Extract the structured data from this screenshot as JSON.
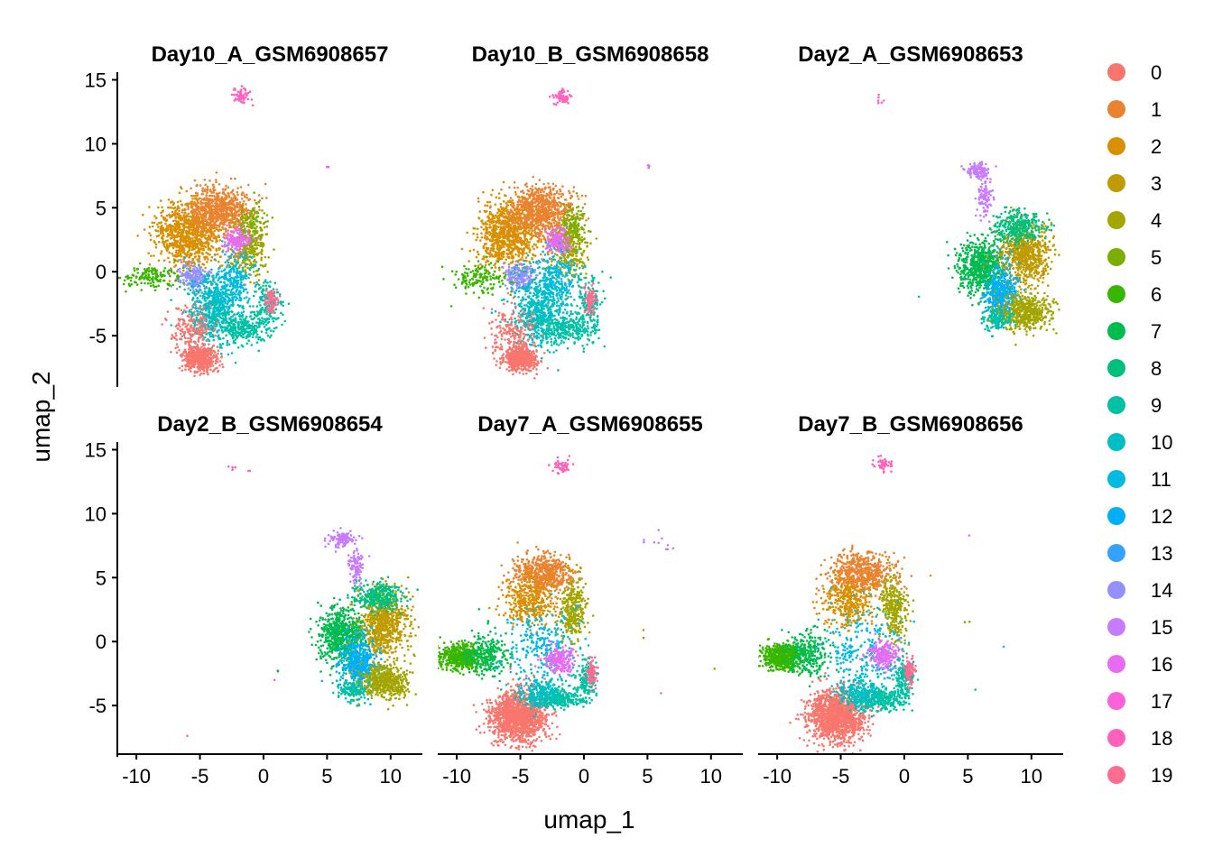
{
  "chart_data": {
    "type": "scatter",
    "xlabel": "umap_1",
    "ylabel": "umap_2",
    "xlim": [
      -11.5,
      12.5
    ],
    "ylim": [
      -8.8,
      15.6
    ],
    "x_ticks": [
      -10,
      -5,
      0,
      5,
      10
    ],
    "x_tick_labels": [
      "-10",
      "-5",
      "0",
      "5",
      "10"
    ],
    "y_ticks": [
      -5,
      0,
      5,
      10,
      15
    ],
    "y_tick_labels": [
      "-5",
      "0",
      "5",
      "10",
      "15"
    ],
    "legend_position": "right",
    "legend": [
      {
        "label": "0",
        "color": "#F8766D"
      },
      {
        "label": "1",
        "color": "#EA8331"
      },
      {
        "label": "2",
        "color": "#D89000"
      },
      {
        "label": "3",
        "color": "#C09B00"
      },
      {
        "label": "4",
        "color": "#A3A500"
      },
      {
        "label": "5",
        "color": "#7CAE00"
      },
      {
        "label": "6",
        "color": "#39B600"
      },
      {
        "label": "7",
        "color": "#00BB4E"
      },
      {
        "label": "8",
        "color": "#00BF7D"
      },
      {
        "label": "9",
        "color": "#00C1A3"
      },
      {
        "label": "10",
        "color": "#00BFC4"
      },
      {
        "label": "11",
        "color": "#00BAE0"
      },
      {
        "label": "12",
        "color": "#00B0F6"
      },
      {
        "label": "13",
        "color": "#35A2FF"
      },
      {
        "label": "14",
        "color": "#9590FF"
      },
      {
        "label": "15",
        "color": "#C77CFF"
      },
      {
        "label": "16",
        "color": "#E76BF3"
      },
      {
        "label": "17",
        "color": "#FA62DB"
      },
      {
        "label": "18",
        "color": "#FF62BC"
      },
      {
        "label": "19",
        "color": "#FF6C91"
      }
    ],
    "panels": [
      {
        "title": "Day10_A_GSM6908657",
        "clusters": [
          {
            "cluster": 18,
            "x": -1.7,
            "y": 13.7,
            "sx": 0.35,
            "sy": 0.3,
            "n": 60
          },
          {
            "cluster": 16,
            "x": 5.1,
            "y": 8.2,
            "sx": 0.05,
            "sy": 0.05,
            "n": 3
          },
          {
            "cluster": 2,
            "x": -5.9,
            "y": 3.0,
            "sx": 1.3,
            "sy": 1.3,
            "n": 900
          },
          {
            "cluster": 1,
            "x": -3.4,
            "y": 4.8,
            "sx": 1.2,
            "sy": 0.9,
            "n": 700
          },
          {
            "cluster": 4,
            "x": -1.2,
            "y": 1.8,
            "sx": 0.7,
            "sy": 1.1,
            "n": 300
          },
          {
            "cluster": 5,
            "x": -0.8,
            "y": 3.8,
            "sx": 0.5,
            "sy": 0.8,
            "n": 120
          },
          {
            "cluster": 16,
            "x": -2.1,
            "y": 2.4,
            "sx": 0.5,
            "sy": 0.5,
            "n": 150
          },
          {
            "cluster": 14,
            "x": -5.5,
            "y": -0.4,
            "sx": 0.6,
            "sy": 0.5,
            "n": 200
          },
          {
            "cluster": 6,
            "x": -8.8,
            "y": -0.4,
            "sx": 1.1,
            "sy": 0.5,
            "n": 150
          },
          {
            "cluster": 10,
            "x": -3.9,
            "y": -3.0,
            "sx": 1.0,
            "sy": 1.4,
            "n": 650
          },
          {
            "cluster": 9,
            "x": -1.6,
            "y": -4.4,
            "sx": 1.0,
            "sy": 0.6,
            "n": 250
          },
          {
            "cluster": 9,
            "x": 0.3,
            "y": -2.6,
            "sx": 0.5,
            "sy": 1.0,
            "n": 150
          },
          {
            "cluster": 0,
            "x": -5.0,
            "y": -6.8,
            "sx": 0.7,
            "sy": 0.5,
            "n": 500
          },
          {
            "cluster": 0,
            "x": -5.6,
            "y": -4.6,
            "sx": 0.9,
            "sy": 0.9,
            "n": 180
          },
          {
            "cluster": 19,
            "x": 0.6,
            "y": -2.2,
            "sx": 0.25,
            "sy": 0.5,
            "n": 80
          },
          {
            "cluster": 11,
            "x": -2.3,
            "y": -0.6,
            "sx": 0.8,
            "sy": 1.0,
            "n": 200
          }
        ]
      },
      {
        "title": "Day10_B_GSM6908658",
        "clusters": [
          {
            "cluster": 18,
            "x": -1.7,
            "y": 13.7,
            "sx": 0.35,
            "sy": 0.3,
            "n": 60
          },
          {
            "cluster": 16,
            "x": 5.1,
            "y": 8.2,
            "sx": 0.05,
            "sy": 0.05,
            "n": 4
          },
          {
            "cluster": 2,
            "x": -5.9,
            "y": 3.0,
            "sx": 1.3,
            "sy": 1.3,
            "n": 900
          },
          {
            "cluster": 1,
            "x": -3.4,
            "y": 4.8,
            "sx": 1.2,
            "sy": 0.9,
            "n": 700
          },
          {
            "cluster": 4,
            "x": -1.2,
            "y": 1.8,
            "sx": 0.7,
            "sy": 1.1,
            "n": 300
          },
          {
            "cluster": 5,
            "x": -0.8,
            "y": 3.8,
            "sx": 0.5,
            "sy": 0.8,
            "n": 120
          },
          {
            "cluster": 16,
            "x": -2.1,
            "y": 2.4,
            "sx": 0.5,
            "sy": 0.5,
            "n": 150
          },
          {
            "cluster": 14,
            "x": -5.1,
            "y": -0.4,
            "sx": 0.6,
            "sy": 0.5,
            "n": 200
          },
          {
            "cluster": 6,
            "x": -8.3,
            "y": -0.6,
            "sx": 1.2,
            "sy": 0.6,
            "n": 150
          },
          {
            "cluster": 10,
            "x": -3.5,
            "y": -3.0,
            "sx": 1.0,
            "sy": 1.4,
            "n": 650
          },
          {
            "cluster": 9,
            "x": -1.2,
            "y": -4.4,
            "sx": 1.0,
            "sy": 0.6,
            "n": 250
          },
          {
            "cluster": 9,
            "x": 0.5,
            "y": -2.6,
            "sx": 0.5,
            "sy": 1.0,
            "n": 150
          },
          {
            "cluster": 0,
            "x": -5.0,
            "y": -6.8,
            "sx": 0.7,
            "sy": 0.5,
            "n": 500
          },
          {
            "cluster": 0,
            "x": -5.6,
            "y": -4.6,
            "sx": 0.9,
            "sy": 0.9,
            "n": 180
          },
          {
            "cluster": 19,
            "x": 0.5,
            "y": -2.2,
            "sx": 0.25,
            "sy": 0.5,
            "n": 80
          },
          {
            "cluster": 11,
            "x": -2.1,
            "y": -0.6,
            "sx": 0.8,
            "sy": 1.0,
            "n": 200
          }
        ]
      },
      {
        "title": "Day2_A_GSM6908653",
        "clusters": [
          {
            "cluster": 18,
            "x": -1.8,
            "y": 13.6,
            "sx": 0.3,
            "sy": 0.2,
            "n": 6
          },
          {
            "cluster": 15,
            "x": 5.8,
            "y": 7.9,
            "sx": 0.4,
            "sy": 0.3,
            "n": 120
          },
          {
            "cluster": 15,
            "x": 6.3,
            "y": 5.8,
            "sx": 0.3,
            "sy": 0.7,
            "n": 90
          },
          {
            "cluster": 7,
            "x": 6.1,
            "y": 0.4,
            "sx": 0.9,
            "sy": 1.0,
            "n": 700
          },
          {
            "cluster": 3,
            "x": 9.5,
            "y": 1.5,
            "sx": 0.9,
            "sy": 1.2,
            "n": 700
          },
          {
            "cluster": 8,
            "x": 9.0,
            "y": 3.5,
            "sx": 1.0,
            "sy": 0.6,
            "n": 300
          },
          {
            "cluster": 12,
            "x": 7.6,
            "y": -1.8,
            "sx": 0.6,
            "sy": 1.1,
            "n": 500
          },
          {
            "cluster": 4,
            "x": 9.5,
            "y": -3.1,
            "sx": 1.0,
            "sy": 0.7,
            "n": 500
          },
          {
            "cluster": 9,
            "x": 7.3,
            "y": -3.7,
            "sx": 0.6,
            "sy": 0.4,
            "n": 120
          },
          {
            "cluster": 9,
            "x": 1.2,
            "y": -2.0,
            "sx": 0.05,
            "sy": 0.05,
            "n": 1
          }
        ]
      },
      {
        "title": "Day2_B_GSM6908654",
        "clusters": [
          {
            "cluster": 18,
            "x": -2.3,
            "y": 13.6,
            "sx": 0.3,
            "sy": 0.2,
            "n": 4
          },
          {
            "cluster": 18,
            "x": -1.2,
            "y": 13.3,
            "sx": 0.1,
            "sy": 0.1,
            "n": 2
          },
          {
            "cluster": 15,
            "x": 6.1,
            "y": 8.0,
            "sx": 0.5,
            "sy": 0.3,
            "n": 120
          },
          {
            "cluster": 15,
            "x": 7.3,
            "y": 5.8,
            "sx": 0.3,
            "sy": 0.7,
            "n": 90
          },
          {
            "cluster": 7,
            "x": 6.2,
            "y": 0.5,
            "sx": 0.9,
            "sy": 1.0,
            "n": 700
          },
          {
            "cluster": 3,
            "x": 9.5,
            "y": 1.4,
            "sx": 0.9,
            "sy": 1.2,
            "n": 700
          },
          {
            "cluster": 8,
            "x": 9.0,
            "y": 3.5,
            "sx": 1.0,
            "sy": 0.6,
            "n": 300
          },
          {
            "cluster": 12,
            "x": 7.5,
            "y": -1.8,
            "sx": 0.7,
            "sy": 1.1,
            "n": 500
          },
          {
            "cluster": 4,
            "x": 9.6,
            "y": -3.1,
            "sx": 1.0,
            "sy": 0.7,
            "n": 500
          },
          {
            "cluster": 9,
            "x": 7.0,
            "y": -3.8,
            "sx": 0.6,
            "sy": 0.4,
            "n": 120
          },
          {
            "cluster": 0,
            "x": -6.0,
            "y": -7.4,
            "sx": 0.05,
            "sy": 0.05,
            "n": 1
          },
          {
            "cluster": 7,
            "x": 1.2,
            "y": -2.2,
            "sx": 0.1,
            "sy": 0.1,
            "n": 2
          },
          {
            "cluster": 19,
            "x": 0.8,
            "y": -3.0,
            "sx": 0.05,
            "sy": 0.05,
            "n": 1
          }
        ]
      },
      {
        "title": "Day7_A_GSM6908655",
        "clusters": [
          {
            "cluster": 18,
            "x": -1.7,
            "y": 13.7,
            "sx": 0.35,
            "sy": 0.3,
            "n": 50
          },
          {
            "cluster": 15,
            "x": 6.0,
            "y": 7.8,
            "sx": 0.8,
            "sy": 0.5,
            "n": 10
          },
          {
            "cluster": 1,
            "x": -3.2,
            "y": 5.3,
            "sx": 1.3,
            "sy": 0.8,
            "n": 600
          },
          {
            "cluster": 2,
            "x": -4.3,
            "y": 3.0,
            "sx": 1.0,
            "sy": 0.9,
            "n": 350
          },
          {
            "cluster": 4,
            "x": -0.8,
            "y": 2.5,
            "sx": 0.5,
            "sy": 1.2,
            "n": 300
          },
          {
            "cluster": 6,
            "x": -9.6,
            "y": -1.2,
            "sx": 0.8,
            "sy": 0.5,
            "n": 550
          },
          {
            "cluster": 7,
            "x": -7.6,
            "y": -1.0,
            "sx": 0.8,
            "sy": 0.8,
            "n": 250
          },
          {
            "cluster": 11,
            "x": -3.3,
            "y": -0.5,
            "sx": 1.5,
            "sy": 1.5,
            "n": 260
          },
          {
            "cluster": 16,
            "x": -1.9,
            "y": -1.5,
            "sx": 0.6,
            "sy": 0.5,
            "n": 200
          },
          {
            "cluster": 0,
            "x": -5.2,
            "y": -5.8,
            "sx": 1.1,
            "sy": 1.0,
            "n": 1300
          },
          {
            "cluster": 9,
            "x": -2.0,
            "y": -4.4,
            "sx": 1.1,
            "sy": 0.4,
            "n": 300
          },
          {
            "cluster": 9,
            "x": 0.2,
            "y": -2.9,
            "sx": 0.4,
            "sy": 0.8,
            "n": 150
          },
          {
            "cluster": 19,
            "x": 0.6,
            "y": -2.4,
            "sx": 0.2,
            "sy": 0.5,
            "n": 80
          },
          {
            "cluster": 10,
            "x": -3.5,
            "y": -4.0,
            "sx": 0.8,
            "sy": 0.6,
            "n": 200
          },
          {
            "cluster": 5,
            "x": 5.0,
            "y": 0.6,
            "sx": 0.3,
            "sy": 0.2,
            "n": 2
          },
          {
            "cluster": 4,
            "x": 10.2,
            "y": -2.2,
            "sx": 0.05,
            "sy": 0.05,
            "n": 1
          },
          {
            "cluster": 0,
            "x": 6.1,
            "y": -4.0,
            "sx": 0.05,
            "sy": 0.05,
            "n": 1
          }
        ]
      },
      {
        "title": "Day7_B_GSM6908656",
        "clusters": [
          {
            "cluster": 18,
            "x": -1.7,
            "y": 13.8,
            "sx": 0.35,
            "sy": 0.3,
            "n": 50
          },
          {
            "cluster": 16,
            "x": 5.1,
            "y": 8.3,
            "sx": 0.05,
            "sy": 0.05,
            "n": 1
          },
          {
            "cluster": 1,
            "x": -3.3,
            "y": 5.3,
            "sx": 1.3,
            "sy": 0.8,
            "n": 600
          },
          {
            "cluster": 2,
            "x": -4.5,
            "y": 3.0,
            "sx": 1.0,
            "sy": 0.9,
            "n": 350
          },
          {
            "cluster": 4,
            "x": -0.8,
            "y": 2.5,
            "sx": 0.5,
            "sy": 1.2,
            "n": 300
          },
          {
            "cluster": 6,
            "x": -9.6,
            "y": -1.2,
            "sx": 0.8,
            "sy": 0.5,
            "n": 550
          },
          {
            "cluster": 7,
            "x": -7.6,
            "y": -1.0,
            "sx": 0.8,
            "sy": 0.8,
            "n": 250
          },
          {
            "cluster": 11,
            "x": -3.2,
            "y": -0.6,
            "sx": 1.5,
            "sy": 1.5,
            "n": 260
          },
          {
            "cluster": 16,
            "x": -1.6,
            "y": -1.0,
            "sx": 0.6,
            "sy": 0.5,
            "n": 200
          },
          {
            "cluster": 0,
            "x": -5.3,
            "y": -5.8,
            "sx": 1.1,
            "sy": 1.0,
            "n": 1300
          },
          {
            "cluster": 9,
            "x": -2.0,
            "y": -4.5,
            "sx": 1.1,
            "sy": 0.4,
            "n": 300
          },
          {
            "cluster": 9,
            "x": 0.0,
            "y": -2.9,
            "sx": 0.4,
            "sy": 0.8,
            "n": 150
          },
          {
            "cluster": 19,
            "x": 0.4,
            "y": -2.4,
            "sx": 0.2,
            "sy": 0.5,
            "n": 80
          },
          {
            "cluster": 10,
            "x": -3.6,
            "y": -4.0,
            "sx": 0.8,
            "sy": 0.6,
            "n": 200
          },
          {
            "cluster": 5,
            "x": 5.0,
            "y": 1.6,
            "sx": 0.3,
            "sy": 0.3,
            "n": 2
          },
          {
            "cluster": 13,
            "x": 7.8,
            "y": -0.4,
            "sx": 0.05,
            "sy": 0.05,
            "n": 1
          },
          {
            "cluster": 9,
            "x": 5.6,
            "y": -3.8,
            "sx": 0.05,
            "sy": 0.05,
            "n": 1
          }
        ]
      }
    ]
  }
}
